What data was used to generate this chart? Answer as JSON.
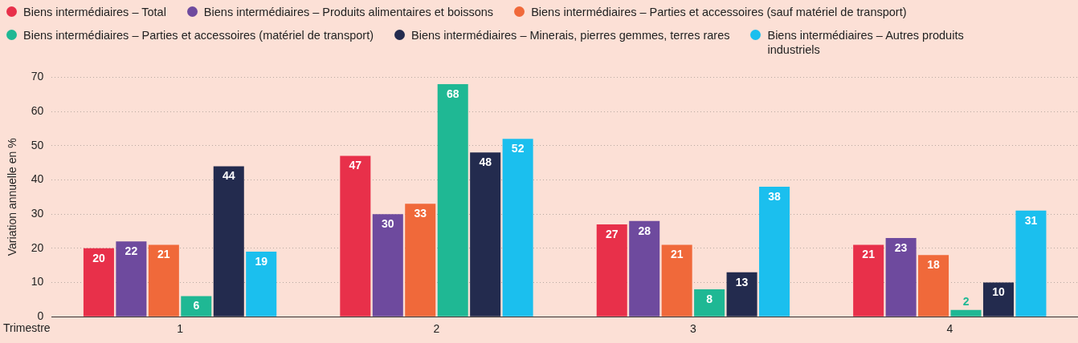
{
  "chart_data": {
    "type": "bar",
    "categories": [
      "1",
      "2",
      "3",
      "4"
    ],
    "xlabel": "Trimestre",
    "ylabel": "Variation annuelle en %",
    "ylim": [
      0,
      70
    ],
    "yticks": [
      0,
      10,
      20,
      30,
      40,
      50,
      60,
      70
    ],
    "grid": "y",
    "legend": "top",
    "marker": "circle",
    "data_labels": true,
    "series": [
      {
        "name": "Biens intermédiaires – Total",
        "color": "#e8304a",
        "values": [
          20,
          47,
          27,
          21
        ]
      },
      {
        "name": "Biens intermédiaires – Produits alimentaires et boissons",
        "color": "#6e4a9e",
        "values": [
          22,
          30,
          28,
          23
        ]
      },
      {
        "name": "Biens intermédiaires – Parties et accessoires (sauf matériel de transport)",
        "color": "#f0693a",
        "values": [
          21,
          33,
          21,
          18
        ]
      },
      {
        "name": "Biens intermédiaires – Parties et accessoires (matériel de transport)",
        "color": "#1fb894",
        "values": [
          6,
          68,
          8,
          2
        ]
      },
      {
        "name": "Biens intermédiaires – Minerais, pierres gemmes, terres rares",
        "color": "#232b4e",
        "values": [
          44,
          48,
          13,
          10
        ]
      },
      {
        "name": "Biens intermédiaires – Autres produits industriels",
        "color": "#1bbfee",
        "values": [
          19,
          52,
          38,
          31
        ]
      }
    ]
  }
}
